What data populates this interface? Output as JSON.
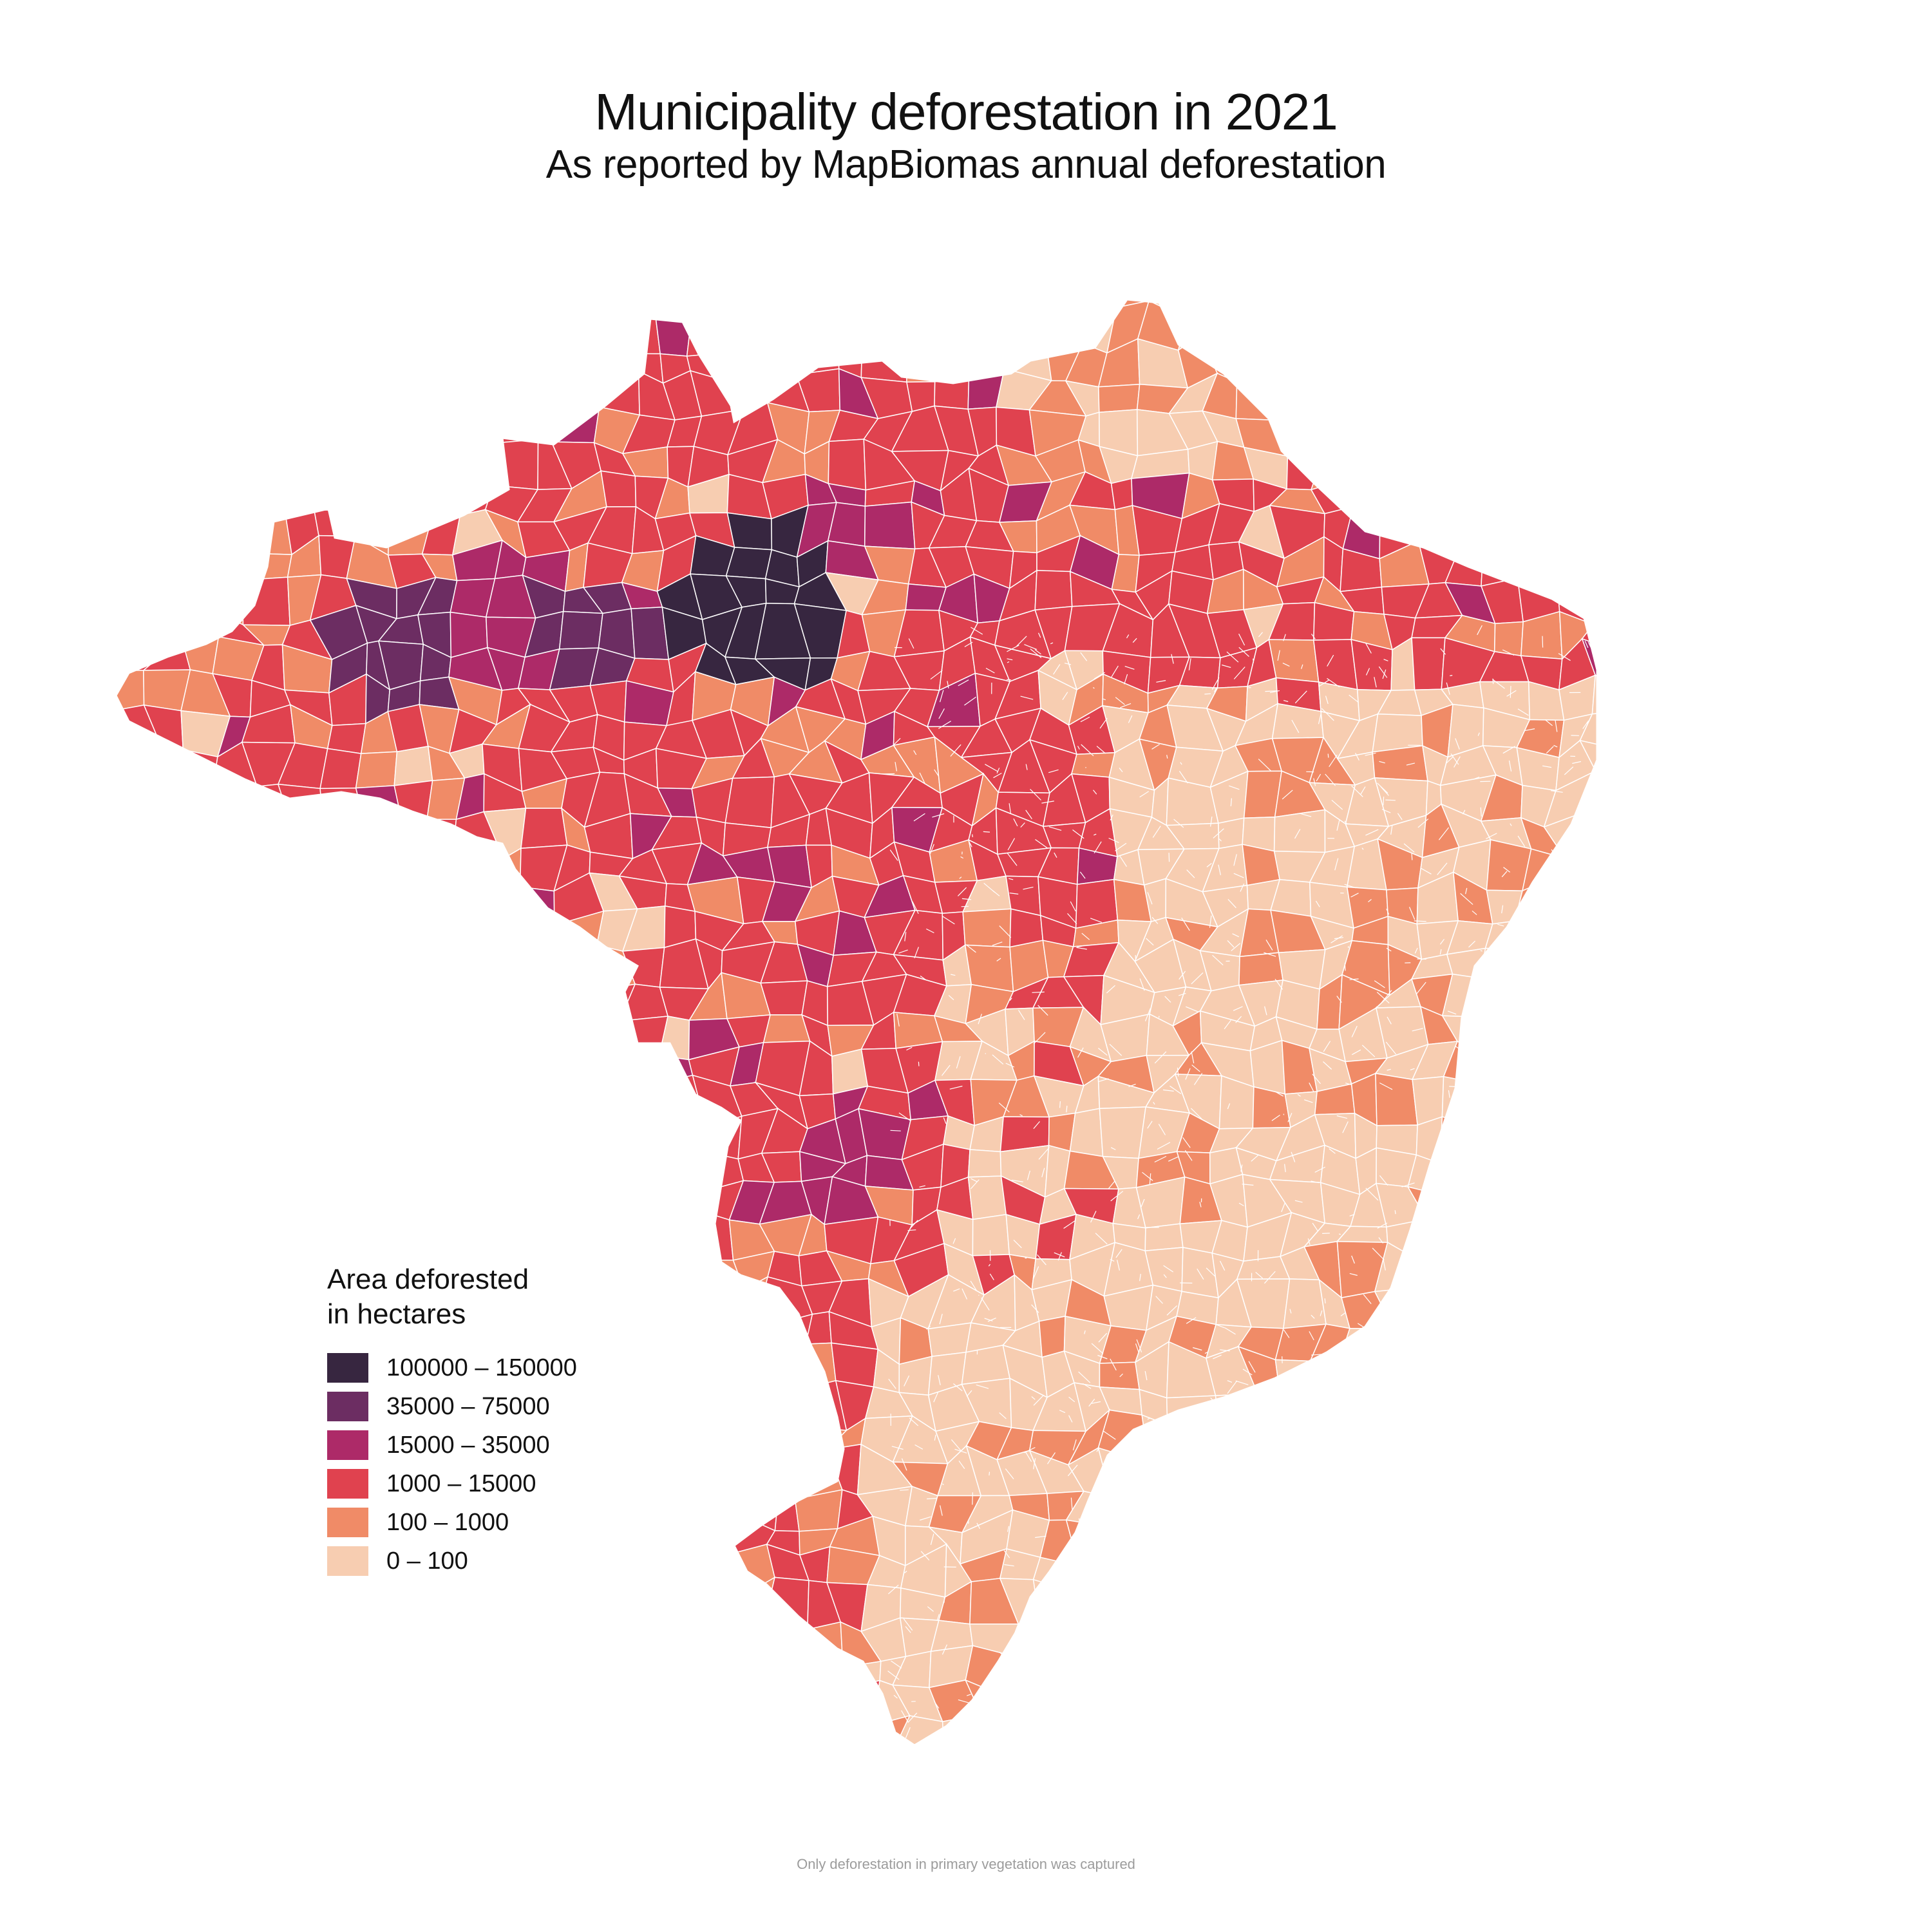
{
  "header": {
    "title": "Municipality deforestation in 2021",
    "subtitle": "As reported by MapBiomas annual deforestation"
  },
  "legend": {
    "title_line1": "Area deforested",
    "title_line2": "in hectares",
    "items": [
      {
        "label": "100000 – 150000",
        "color": "#372640"
      },
      {
        "label": "35000 – 75000",
        "color": "#6c2d62"
      },
      {
        "label": "15000 – 35000",
        "color": "#ad2a68"
      },
      {
        "label": "1000 – 15000",
        "color": "#e0424f"
      },
      {
        "label": "100 – 1000",
        "color": "#f08b67"
      },
      {
        "label": "0 – 100",
        "color": "#f7cdb1"
      }
    ]
  },
  "map": {
    "region": "Brazil",
    "unit": "hectares",
    "year": 2021,
    "boundary_color": "#ffffff"
  },
  "footnote": "Only deforestation in primary vegetation was captured"
}
